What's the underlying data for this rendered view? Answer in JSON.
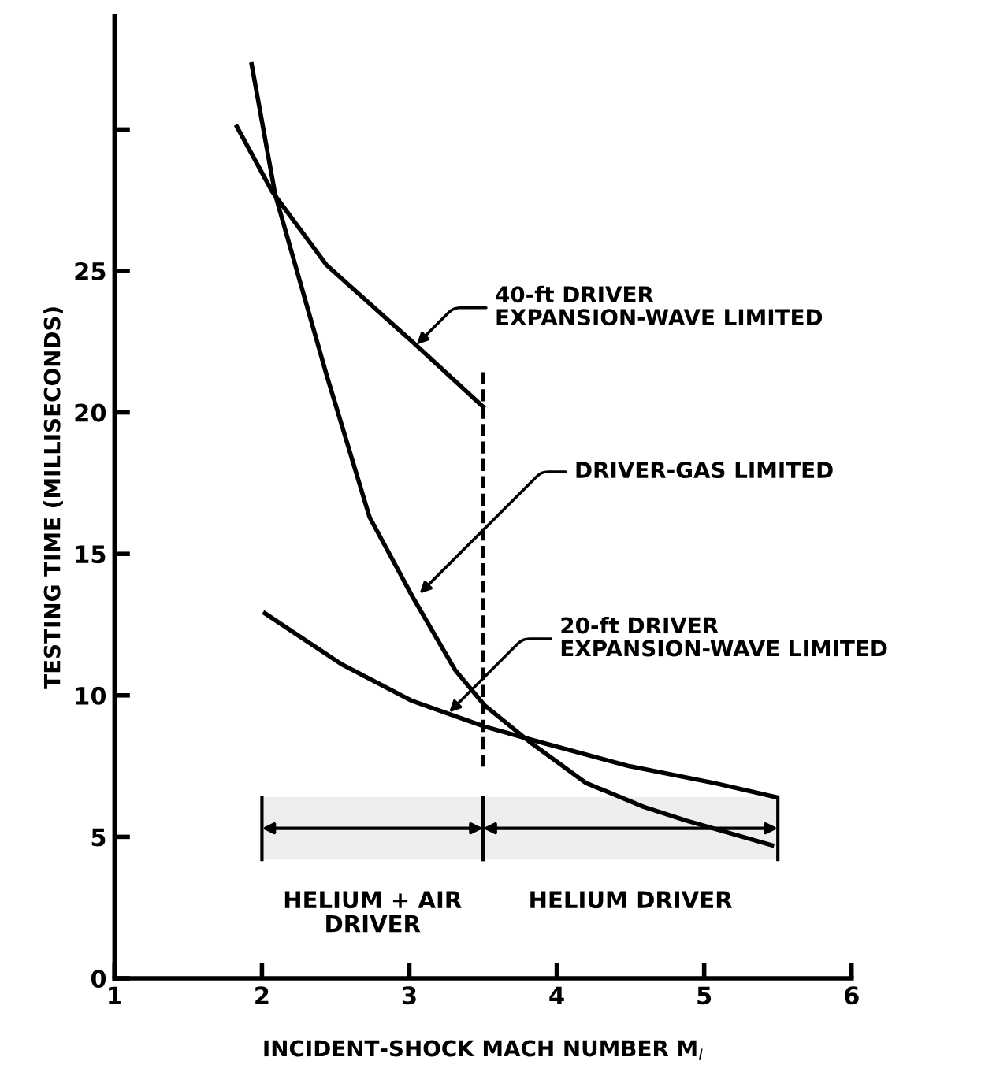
{
  "chart_data": {
    "type": "line",
    "xlabel": "INCIDENT-SHOCK MACH NUMBER M$_{I}$",
    "ylabel": "TESTING TIME (MILLISECONDS)",
    "xlim": [
      1,
      6
    ],
    "ylim": [
      0,
      34
    ],
    "xticks": [
      1,
      2,
      3,
      4,
      5,
      6
    ],
    "yticks": [
      0,
      5,
      10,
      15,
      20,
      25,
      {
        "value": 30,
        "label": null
      }
    ],
    "grid": false,
    "legend": false,
    "marker": "none",
    "line_style": "solid",
    "series": [
      {
        "color": "#000000",
        "x": [
          1.83,
          2.07,
          2.44,
          3.02,
          3.5
        ],
        "values": [
          30.1,
          27.8,
          25.2,
          22.5,
          20.2
        ]
      },
      {
        "color": "#000000",
        "x": [
          1.93,
          2.09,
          2.44,
          2.73,
          3.02,
          3.31,
          3.51,
          3.83,
          4.2,
          4.59,
          4.88,
          5.46
        ],
        "values": [
          32.3,
          27.7,
          21.3,
          16.3,
          13.5,
          10.9,
          9.65,
          8.3,
          6.9,
          6.06,
          5.57,
          4.7
        ]
      },
      {
        "color": "#000000",
        "x": [
          2.02,
          2.54,
          3.02,
          3.51,
          3.85,
          4.49,
          5.07,
          5.49
        ],
        "values": [
          12.9,
          11.1,
          9.8,
          8.9,
          8.4,
          7.5,
          6.9,
          6.4
        ]
      }
    ],
    "ref_lines": [
      {
        "axis": "x",
        "value": 3.5,
        "label": null,
        "line_style": "dashed",
        "color": "#000000"
      }
    ],
    "bands": [
      {
        "axis": "x",
        "from": 2,
        "to": 3.5,
        "label": "HELIUM + AIR\nDRIVER",
        "color": "#eeeeee"
      },
      {
        "axis": "x",
        "from": 3.5,
        "to": 5.5,
        "label": "HELIUM DRIVER",
        "color": "#eeeeee"
      }
    ],
    "annotations": [
      {
        "text": "40-ft DRIVER\nEXPANSION-WAVE LIMITED",
        "x": 3.05,
        "y": 22.4
      },
      {
        "text": "DRIVER-GAS LIMITED",
        "x": 3.07,
        "y": 13.6
      },
      {
        "text": "20-ft DRIVER\nEXPANSION-WAVE LIMITED",
        "x": 3.27,
        "y": 9.4
      }
    ]
  }
}
